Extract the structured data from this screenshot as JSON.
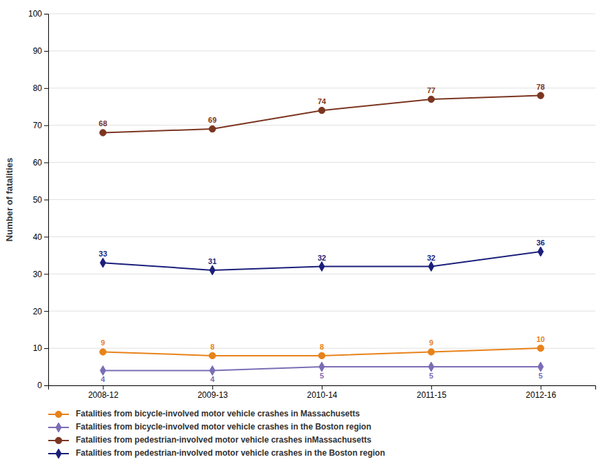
{
  "chart_data": {
    "type": "line",
    "y_label": "Number of fatalities",
    "categories": [
      "2008-12",
      "2009-13",
      "2010-14",
      "2011-15",
      "2012-16"
    ],
    "series": [
      {
        "name": "Fatalities from bicycle-involved motor vehicle crashes in Massachusetts",
        "color": "#E8821A",
        "marker": "circle",
        "values": [
          9,
          8,
          8,
          9,
          10
        ]
      },
      {
        "name": "Fatalities from bicycle-involved motor vehicle crashes in the Boston region",
        "color": "#7B6DB5",
        "marker": "diamond",
        "values": [
          4,
          4,
          5,
          5,
          5
        ]
      },
      {
        "name": "Fatalities from pedestrian-involved motor vehicle crashes inMassachusetts",
        "color": "#7B3520",
        "marker": "circle",
        "values": [
          68,
          69,
          74,
          77,
          78
        ]
      },
      {
        "name": "Fatalities from pedestrian-involved motor vehicle crashes in the Boston region",
        "color": "#1B1F7A",
        "marker": "diamond",
        "values": [
          33,
          31,
          32,
          32,
          36
        ]
      }
    ],
    "ylim": [
      0,
      100
    ],
    "yticks": [
      0,
      10,
      20,
      30,
      40,
      50,
      60,
      70,
      80,
      90,
      100
    ],
    "grid": true,
    "data_labels": true,
    "legend": "bottom"
  }
}
